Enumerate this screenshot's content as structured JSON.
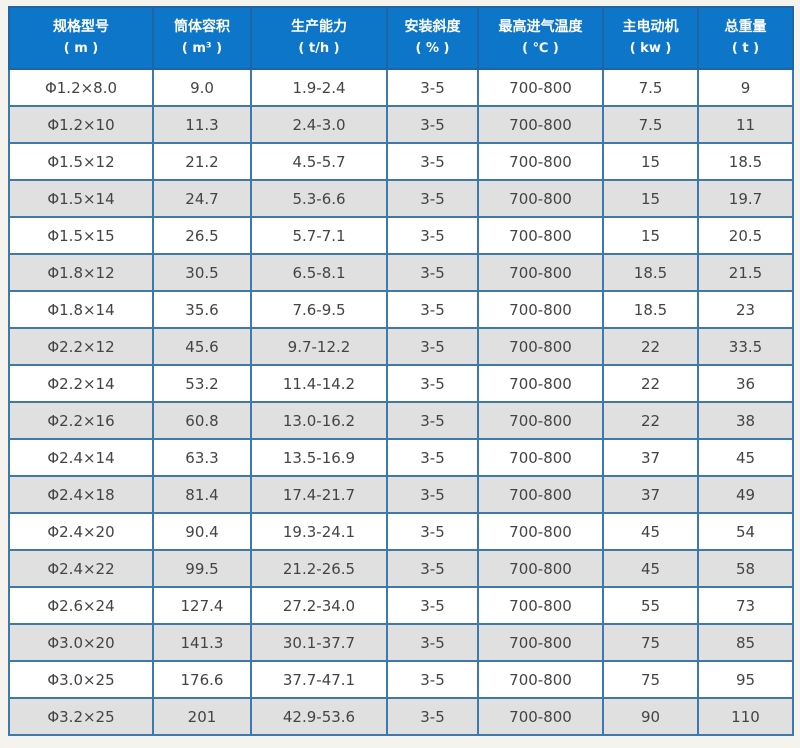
{
  "colors": {
    "page_background": "#f4f3ee",
    "header_background": "#0d76c8",
    "header_text": "#ffffff",
    "grid_border": "#3d7aab",
    "outer_border": "#1f64a5",
    "row_even_background": "#e0e0e0",
    "row_odd_background": "#ffffff",
    "cell_text": "#444444"
  },
  "chart_data": {
    "type": "table",
    "title": "",
    "columns": [
      {
        "title": "规格型号",
        "unit": "( m )"
      },
      {
        "title": "筒体容积",
        "unit": "( m³ )"
      },
      {
        "title": "生产能力",
        "unit": "( t/h )"
      },
      {
        "title": "安装斜度",
        "unit": "( % )"
      },
      {
        "title": "最高进气温度",
        "unit": "( ℃ )"
      },
      {
        "title": "主电动机",
        "unit": "( kw )"
      },
      {
        "title": "总重量",
        "unit": "( t )"
      }
    ],
    "rows": [
      [
        "Φ1.2×8.0",
        "9.0",
        "1.9-2.4",
        "3-5",
        "700-800",
        "7.5",
        "9"
      ],
      [
        "Φ1.2×10",
        "11.3",
        "2.4-3.0",
        "3-5",
        "700-800",
        "7.5",
        "11"
      ],
      [
        "Φ1.5×12",
        "21.2",
        "4.5-5.7",
        "3-5",
        "700-800",
        "15",
        "18.5"
      ],
      [
        "Φ1.5×14",
        "24.7",
        "5.3-6.6",
        "3-5",
        "700-800",
        "15",
        "19.7"
      ],
      [
        "Φ1.5×15",
        "26.5",
        "5.7-7.1",
        "3-5",
        "700-800",
        "15",
        "20.5"
      ],
      [
        "Φ1.8×12",
        "30.5",
        "6.5-8.1",
        "3-5",
        "700-800",
        "18.5",
        "21.5"
      ],
      [
        "Φ1.8×14",
        "35.6",
        "7.6-9.5",
        "3-5",
        "700-800",
        "18.5",
        "23"
      ],
      [
        "Φ2.2×12",
        "45.6",
        "9.7-12.2",
        "3-5",
        "700-800",
        "22",
        "33.5"
      ],
      [
        "Φ2.2×14",
        "53.2",
        "11.4-14.2",
        "3-5",
        "700-800",
        "22",
        "36"
      ],
      [
        "Φ2.2×16",
        "60.8",
        "13.0-16.2",
        "3-5",
        "700-800",
        "22",
        "38"
      ],
      [
        "Φ2.4×14",
        "63.3",
        "13.5-16.9",
        "3-5",
        "700-800",
        "37",
        "45"
      ],
      [
        "Φ2.4×18",
        "81.4",
        "17.4-21.7",
        "3-5",
        "700-800",
        "37",
        "49"
      ],
      [
        "Φ2.4×20",
        "90.4",
        "19.3-24.1",
        "3-5",
        "700-800",
        "45",
        "54"
      ],
      [
        "Φ2.4×22",
        "99.5",
        "21.2-26.5",
        "3-5",
        "700-800",
        "45",
        "58"
      ],
      [
        "Φ2.6×24",
        "127.4",
        "27.2-34.0",
        "3-5",
        "700-800",
        "55",
        "73"
      ],
      [
        "Φ3.0×20",
        "141.3",
        "30.1-37.7",
        "3-5",
        "700-800",
        "75",
        "85"
      ],
      [
        "Φ3.0×25",
        "176.6",
        "37.7-47.1",
        "3-5",
        "700-800",
        "75",
        "95"
      ],
      [
        "Φ3.2×25",
        "201",
        "42.9-53.6",
        "3-5",
        "700-800",
        "90",
        "110"
      ]
    ]
  }
}
